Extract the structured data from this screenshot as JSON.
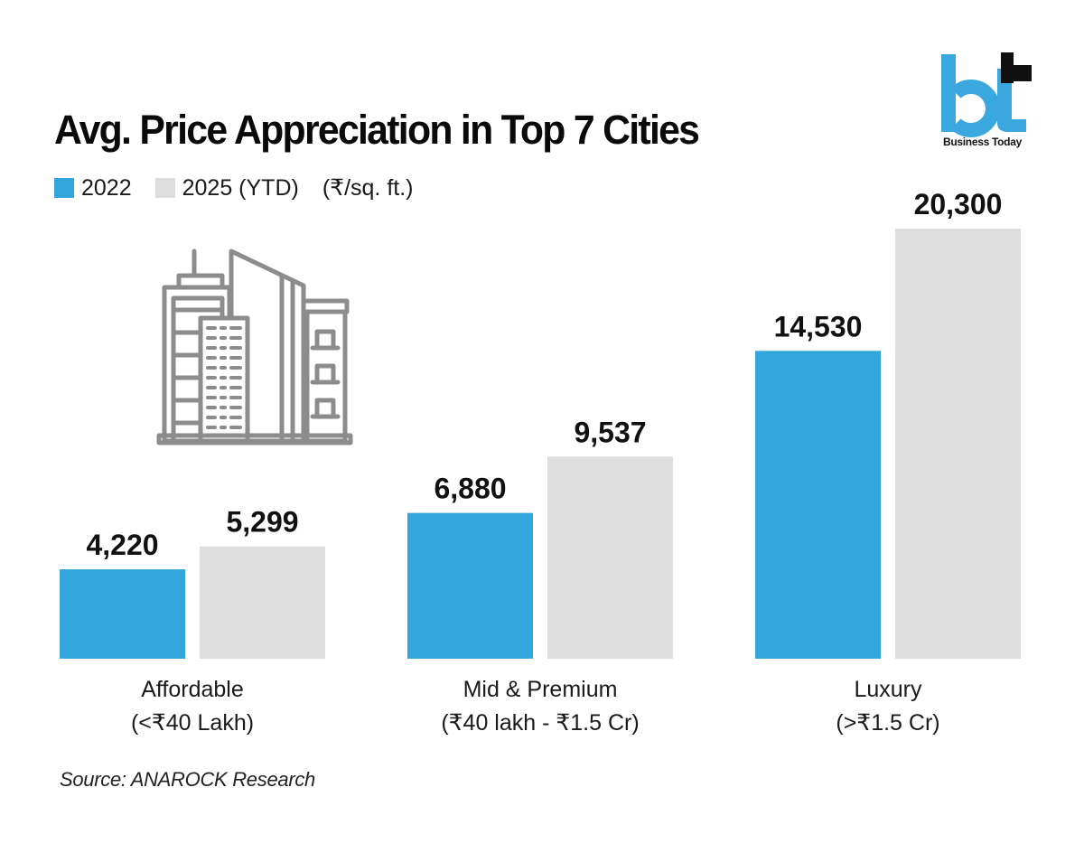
{
  "header": {
    "title": "Avg. Price Appreciation in Top 7 Cities",
    "unit_note": "(₹/sq. ft.)"
  },
  "logo": {
    "mark": "bt",
    "text": "Business Today",
    "colors": {
      "blue": "#3aa8df",
      "black": "#111111"
    }
  },
  "illustration": {
    "icon": "city-buildings-icon",
    "color": "#8c8c8c"
  },
  "source": "Source: ANAROCK Research",
  "chart_data": {
    "type": "bar",
    "title": "Avg. Price Appreciation in Top 7 Cities",
    "xlabel": "",
    "ylabel": "₹/sq. ft.",
    "ylim": [
      0,
      20300
    ],
    "grid": false,
    "legend_position": "top-left",
    "categories": [
      "Affordable",
      "Mid & Premium",
      "Luxury"
    ],
    "category_sublabels": [
      "(<₹40 Lakh)",
      "(₹40 lakh - ₹1.5 Cr)",
      "(>₹1.5 Cr)"
    ],
    "series": [
      {
        "name": "2022",
        "color": "#33a7dd",
        "values": [
          4220,
          6880,
          14530
        ],
        "labels": [
          "4,220",
          "6,880",
          "14,530"
        ]
      },
      {
        "name": "2025 (YTD)",
        "color": "#dedede",
        "values": [
          5299,
          9537,
          20300
        ],
        "labels": [
          "5,299",
          "9,537",
          "20,300"
        ]
      }
    ]
  }
}
